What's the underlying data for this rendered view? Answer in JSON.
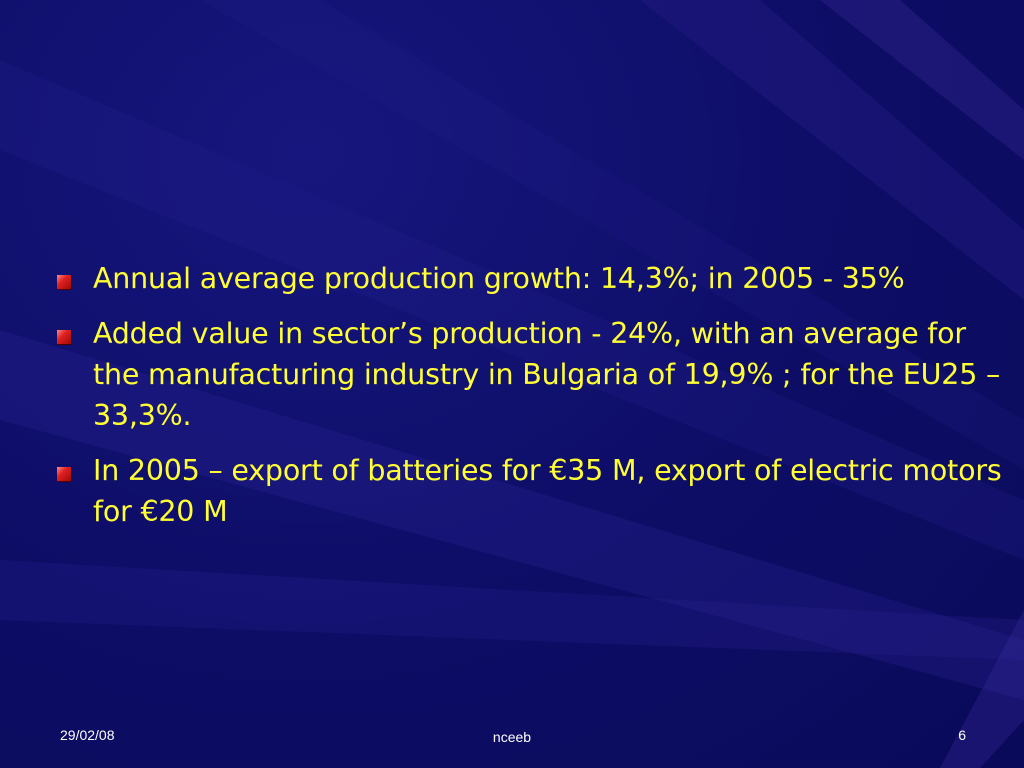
{
  "slide": {
    "bullets": [
      {
        "text": "Annual average production growth: 14,3%; in 2005 - 35%"
      },
      {
        "text": "Added value in sector’s production - 24%, with an average for the manufacturing industry in Bulgaria of 19,9% ; for the EU25 – 33,3%."
      },
      {
        "text": "In 2005 – export of batteries for €35 M, export of electric motors for €20 M"
      }
    ],
    "footer": {
      "date": "29/02/08",
      "center": "nceeb",
      "page": "6"
    }
  },
  "colors": {
    "background": "#0e0e6a",
    "text": "#ffff33",
    "bullet": "#e02020",
    "footer_text": "#ffffff"
  }
}
